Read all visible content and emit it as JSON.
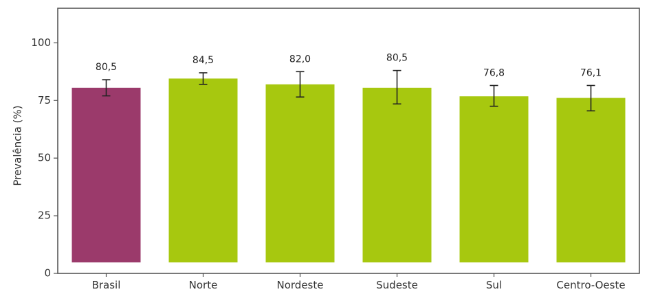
{
  "chart_data": {
    "type": "bar",
    "title": "",
    "xlabel": "",
    "ylabel": "Prevalência (%)",
    "ylim": [
      0,
      115
    ],
    "yticks": [
      0,
      25,
      50,
      75,
      100
    ],
    "grid": false,
    "categories": [
      "Brasil",
      "Norte",
      "Nordeste",
      "Sudeste",
      "Sul",
      "Centro-Oeste"
    ],
    "values": [
      80.5,
      84.5,
      82.0,
      80.5,
      76.8,
      76.1
    ],
    "value_labels": [
      "80,5",
      "84,5",
      "82,0",
      "80,5",
      "76,8",
      "76,1"
    ],
    "error_low": [
      77.0,
      82.0,
      76.5,
      73.5,
      72.5,
      70.5
    ],
    "error_high": [
      84.0,
      87.0,
      87.5,
      88.0,
      81.5,
      81.5
    ],
    "bar_colors": [
      "#9b3a6b",
      "#a7c80f",
      "#a7c80f",
      "#a7c80f",
      "#a7c80f",
      "#a7c80f"
    ]
  }
}
